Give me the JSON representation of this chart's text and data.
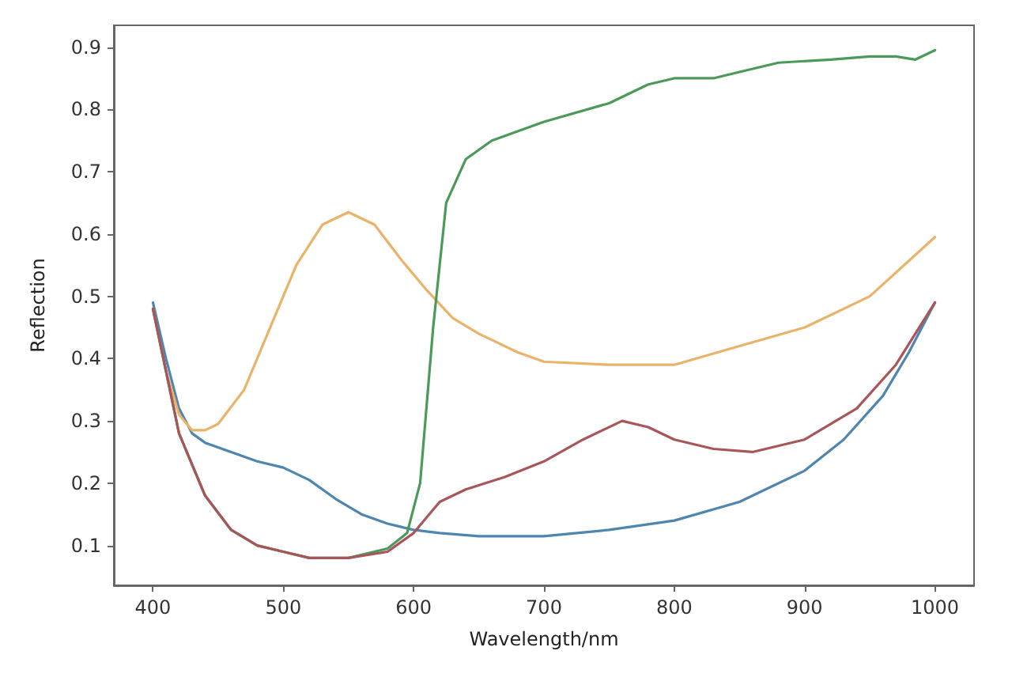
{
  "chart_data": {
    "type": "line",
    "xlabel": "Wavelength/nm",
    "ylabel": "Reflection",
    "xlim": [
      370,
      1030
    ],
    "ylim": [
      0.036,
      0.935
    ],
    "xticks": [
      400,
      500,
      600,
      700,
      800,
      900,
      1000
    ],
    "yticks": [
      0.1,
      0.2,
      0.3,
      0.4,
      0.5,
      0.6,
      0.7,
      0.8,
      0.9
    ],
    "grid": false,
    "marker": "none",
    "line_style": "solid",
    "series": [
      {
        "color": "#4f86b0",
        "x": [
          400,
          410,
          420,
          430,
          440,
          460,
          480,
          500,
          520,
          540,
          560,
          580,
          600,
          620,
          650,
          700,
          750,
          800,
          850,
          900,
          930,
          960,
          980,
          1000
        ],
        "values": [
          0.49,
          0.4,
          0.32,
          0.28,
          0.265,
          0.25,
          0.235,
          0.225,
          0.205,
          0.175,
          0.15,
          0.135,
          0.125,
          0.12,
          0.115,
          0.115,
          0.125,
          0.14,
          0.17,
          0.22,
          0.27,
          0.34,
          0.41,
          0.49
        ]
      },
      {
        "color": "#e9b46a",
        "x": [
          400,
          410,
          420,
          430,
          440,
          450,
          470,
          490,
          510,
          530,
          550,
          570,
          590,
          610,
          630,
          650,
          680,
          700,
          750,
          800,
          850,
          900,
          950,
          1000
        ],
        "values": [
          0.48,
          0.38,
          0.31,
          0.285,
          0.285,
          0.295,
          0.35,
          0.45,
          0.55,
          0.615,
          0.635,
          0.615,
          0.56,
          0.51,
          0.465,
          0.44,
          0.41,
          0.395,
          0.39,
          0.39,
          0.42,
          0.45,
          0.5,
          0.595
        ]
      },
      {
        "color": "#4c9a5a",
        "x": [
          400,
          420,
          440,
          460,
          480,
          500,
          520,
          550,
          580,
          595,
          605,
          615,
          625,
          640,
          660,
          700,
          750,
          780,
          800,
          830,
          850,
          880,
          920,
          950,
          970,
          985,
          1000
        ],
        "values": [
          0.48,
          0.28,
          0.18,
          0.125,
          0.1,
          0.09,
          0.08,
          0.08,
          0.095,
          0.12,
          0.2,
          0.45,
          0.65,
          0.72,
          0.75,
          0.78,
          0.81,
          0.84,
          0.85,
          0.85,
          0.86,
          0.875,
          0.88,
          0.885,
          0.885,
          0.88,
          0.895
        ]
      },
      {
        "color": "#a8565a",
        "x": [
          400,
          420,
          440,
          460,
          480,
          500,
          520,
          550,
          580,
          600,
          620,
          640,
          670,
          700,
          730,
          760,
          780,
          800,
          830,
          860,
          900,
          940,
          970,
          1000
        ],
        "values": [
          0.48,
          0.28,
          0.18,
          0.125,
          0.1,
          0.09,
          0.08,
          0.08,
          0.09,
          0.12,
          0.17,
          0.19,
          0.21,
          0.235,
          0.27,
          0.3,
          0.29,
          0.27,
          0.255,
          0.25,
          0.27,
          0.32,
          0.39,
          0.49
        ]
      }
    ]
  }
}
